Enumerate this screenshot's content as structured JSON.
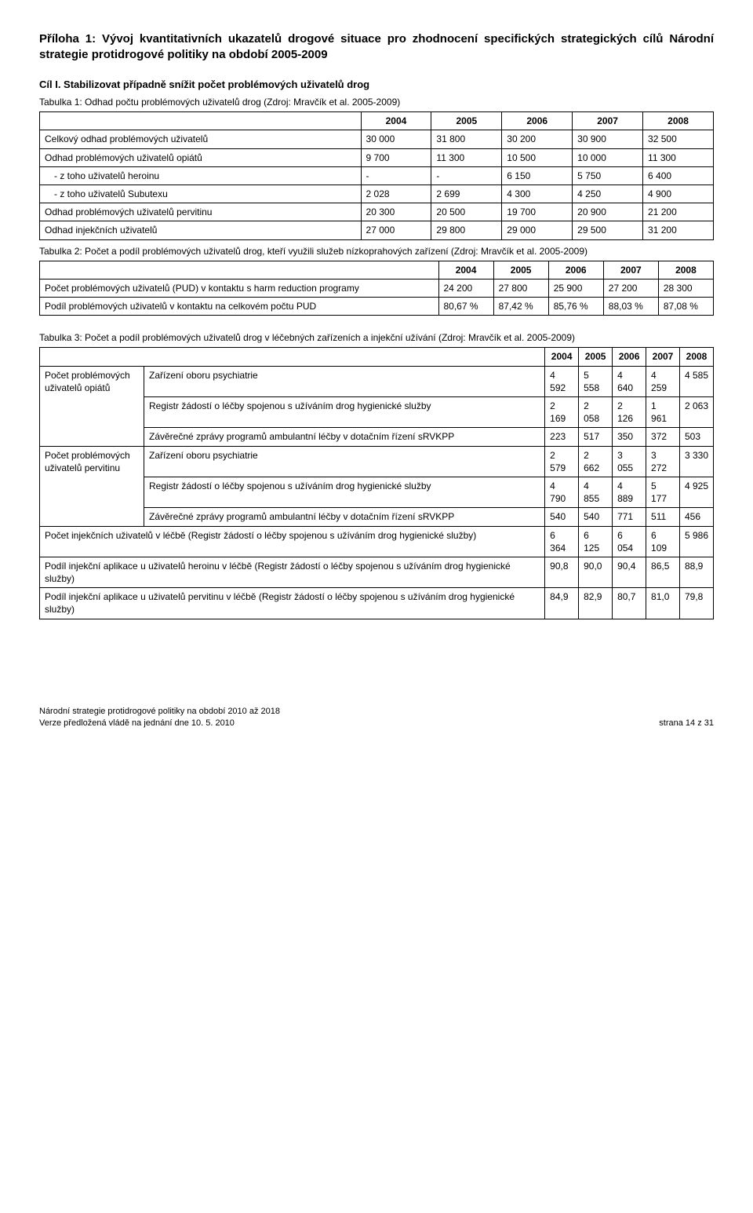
{
  "header": {
    "title": "Příloha 1: Vývoj kvantitativních ukazatelů drogové situace pro zhodnocení specifických strategických cílů Národní strategie protidrogové politiky na období 2005-2009"
  },
  "cil": "Cíl I. Stabilizovat případně snížit počet problémových uživatelů drog",
  "tab1": {
    "caption": "Tabulka 1: Odhad počtu problémových uživatelů drog (Zdroj: Mravčík et al. 2005-2009)",
    "years": [
      "2004",
      "2005",
      "2006",
      "2007",
      "2008"
    ],
    "rows": [
      {
        "label": "Celkový odhad problémových uživatelů",
        "v": [
          "30 000",
          "31 800",
          "30 200",
          "30 900",
          "32 500"
        ],
        "indent": false
      },
      {
        "label": "Odhad problémových uživatelů opiátů",
        "v": [
          "9 700",
          "11 300",
          "10 500",
          "10 000",
          "11 300"
        ],
        "indent": false
      },
      {
        "label": "- z toho uživatelů heroinu",
        "v": [
          "-",
          "-",
          "6 150",
          "5 750",
          "6 400"
        ],
        "indent": true
      },
      {
        "label": "- z toho uživatelů Subutexu",
        "v": [
          "2 028",
          "2 699",
          "4 300",
          "4 250",
          "4 900"
        ],
        "indent": true
      },
      {
        "label": "Odhad problémových uživatelů pervitinu",
        "v": [
          "20 300",
          "20 500",
          "19 700",
          "20 900",
          "21 200"
        ],
        "indent": false
      },
      {
        "label": "Odhad injekčních uživatelů",
        "v": [
          "27 000",
          "29 800",
          "29 000",
          "29 500",
          "31 200"
        ],
        "indent": false
      }
    ]
  },
  "tab2": {
    "caption": "Tabulka 2: Počet a podíl problémových uživatelů drog, kteří využili služeb nízkoprahových zařízení (Zdroj: Mravčík et al. 2005-2009)",
    "years": [
      "2004",
      "2005",
      "2006",
      "2007",
      "2008"
    ],
    "rows": [
      {
        "label": "Počet problémových uživatelů (PUD) v kontaktu s harm reduction programy",
        "v": [
          "24 200",
          "27 800",
          "25 900",
          "27 200",
          "28 300"
        ]
      },
      {
        "label": "Podíl problémových uživatelů v kontaktu na celkovém počtu PUD",
        "v": [
          "80,67 %",
          "87,42 %",
          "85,76 %",
          "88,03 %",
          "87,08 %"
        ]
      }
    ]
  },
  "tab3": {
    "caption": "Tabulka 3: Počet a podíl problémových uživatelů drog v léčebných zařízeních a injekční užívání (Zdroj: Mravčík et al. 2005-2009)",
    "years": [
      "2004",
      "2005",
      "2006",
      "2007",
      "2008"
    ],
    "group1_label": "Počet problémových uživatelů opiátů",
    "group1": [
      {
        "label": "Zařízení oboru psychiatrie",
        "v": [
          "4 592",
          "5 558",
          "4 640",
          "4 259",
          "4 585"
        ]
      },
      {
        "label": "Registr žádostí o léčby spojenou s užíváním drog hygienické služby",
        "v": [
          "2 169",
          "2 058",
          "2 126",
          "1 961",
          "2 063"
        ]
      },
      {
        "label": "Závěrečné zprávy programů ambulantní léčby v dotačním řízení sRVKPP",
        "v": [
          "223",
          "517",
          "350",
          "372",
          "503"
        ]
      }
    ],
    "group2_label": "Počet problémových uživatelů pervitinu",
    "group2": [
      {
        "label": "Zařízení oboru psychiatrie",
        "v": [
          "2 579",
          "2 662",
          "3 055",
          "3 272",
          "3 330"
        ]
      },
      {
        "label": "Registr žádostí o léčby spojenou s užíváním drog hygienické služby",
        "v": [
          "4 790",
          "4 855",
          "4 889",
          "5 177",
          "4 925"
        ]
      },
      {
        "label": "Závěrečné zprávy programů ambulantní léčby v dotačním řízení sRVKPP",
        "v": [
          "540",
          "540",
          "771",
          "511",
          "456"
        ]
      }
    ],
    "flat": [
      {
        "label": "Počet injekčních uživatelů v léčbě (Registr žádostí o léčby spojenou s užíváním drog hygienické služby)",
        "v": [
          "6 364",
          "6 125",
          "6 054",
          "6 109",
          "5 986"
        ]
      },
      {
        "label": "Podíl injekční aplikace u uživatelů heroinu v léčbě (Registr žádostí o léčby spojenou s užíváním drog hygienické služby)",
        "v": [
          "90,8",
          "90,0",
          "90,4",
          "86,5",
          "88,9"
        ]
      },
      {
        "label": "Podíl injekční aplikace u uživatelů pervitinu v léčbě (Registr žádostí o léčby spojenou s užíváním drog hygienické služby)",
        "v": [
          "84,9",
          "82,9",
          "80,7",
          "81,0",
          "79,8"
        ]
      }
    ]
  },
  "footer": {
    "left1": "Národní strategie protidrogové politiky na období 2010 až 2018",
    "left2": "Verze předložená vládě na jednání dne 10. 5. 2010",
    "right": "strana 14 z 31"
  }
}
